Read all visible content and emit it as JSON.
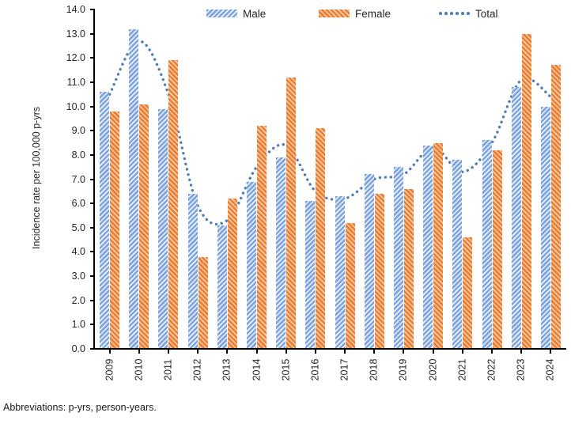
{
  "chart_data": {
    "type": "bar",
    "title": "",
    "categories": [
      "2009",
      "2010",
      "2011",
      "2012",
      "2013",
      "2014",
      "2015",
      "2016",
      "2017",
      "2018",
      "2019",
      "2020",
      "2021",
      "2022",
      "2023",
      "2024"
    ],
    "series": [
      {
        "name": "Male",
        "type": "bar",
        "values": [
          10.6,
          13.2,
          9.9,
          6.4,
          5.1,
          6.9,
          7.9,
          6.1,
          6.3,
          7.2,
          7.5,
          8.4,
          7.8,
          8.6,
          10.8,
          10.0
        ]
      },
      {
        "name": "Female",
        "type": "bar",
        "values": [
          9.8,
          10.1,
          11.9,
          3.8,
          6.2,
          9.2,
          11.2,
          9.1,
          5.2,
          6.4,
          6.6,
          8.5,
          4.6,
          8.2,
          13.0,
          11.7
        ]
      },
      {
        "name": "Total",
        "type": "line",
        "values": [
          10.5,
          12.7,
          10.5,
          5.9,
          5.3,
          7.5,
          8.4,
          6.5,
          6.2,
          7.0,
          7.2,
          8.3,
          7.3,
          8.5,
          11.1,
          10.4
        ]
      }
    ],
    "xlabel": "",
    "ylabel": "Incidence rate per 100,000 p-yrs",
    "ylim": [
      0,
      14
    ],
    "ytick_step": 1,
    "ytick_decimals": 1,
    "grid": false,
    "legend_position": "top",
    "colors": {
      "male_base": "#7DA3E2",
      "male_stripe": "#F0F5FC",
      "female_base": "#ED7D31",
      "female_stripe": "#F9CFAE",
      "total_line": "#4E7CBC",
      "axis": "#000000",
      "text": "#262626"
    }
  },
  "footnote": {
    "text": "Abbreviations: p-yrs, person-years."
  }
}
